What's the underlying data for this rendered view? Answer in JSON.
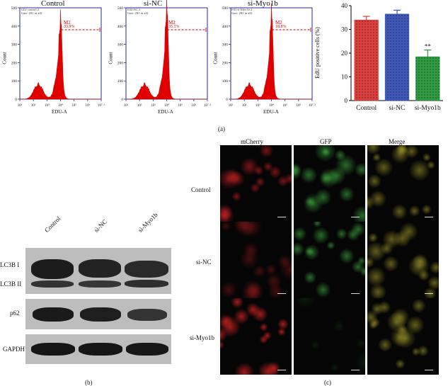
{
  "flow_panels": [
    {
      "title": "Control",
      "gate_line1": "G02 control 2",
      "gate_line2": "Gate: (R1 in all)",
      "m2": "M2",
      "pct": "33.9%",
      "peak": 0.7
    },
    {
      "title": "si-NC",
      "gate_line1": "E02 NC 2",
      "gate_line2": "Gate: (R1 in all)",
      "m2": "M2",
      "pct": "35.1%",
      "peak": 0.82
    },
    {
      "title": "si-Myo1b",
      "gate_line1": "E01 si-Myo1b 2",
      "gate_line2": "Gate: (R1 in all)",
      "m2": "M2",
      "pct": "18.8%",
      "peak": 0.76
    }
  ],
  "flow_axis": {
    "xlabel": "EDU-A",
    "ylabel": "Count",
    "yticks": [
      "0",
      "100",
      "200",
      "300",
      "400",
      "500"
    ],
    "xticks": [
      "10¹",
      "10²",
      "10³",
      "10⁴",
      "10⁵",
      "10⁶",
      "10⁷·²"
    ]
  },
  "chart_data": {
    "type": "bar",
    "categories": [
      "Control",
      "si-NC",
      "si-Myo1b"
    ],
    "values": [
      34,
      36.5,
      18.5
    ],
    "errors": [
      1.5,
      1.6,
      2.8
    ],
    "annotations": [
      "",
      "",
      "**"
    ],
    "ylabel": "EdU positive cells (%)",
    "ylim": [
      0,
      40
    ],
    "yticks": [
      "0",
      "10",
      "20",
      "30",
      "40"
    ],
    "colors": [
      "#d9403d",
      "#3f58b8",
      "#2f9a42"
    ]
  },
  "panel_labels": {
    "a": "(a)",
    "b": "(b)",
    "c": "(c)"
  },
  "blot": {
    "headers": [
      "Control",
      "si-NC",
      "si-Myo1b"
    ],
    "rows": [
      "LC3B I",
      "LC3B II",
      "p62",
      "GAPDH"
    ]
  },
  "microscopy": {
    "columns": [
      "mCherry",
      "GFP",
      "Merge"
    ],
    "rows": [
      "Control",
      "si-NC",
      "si-Myo1b"
    ]
  }
}
